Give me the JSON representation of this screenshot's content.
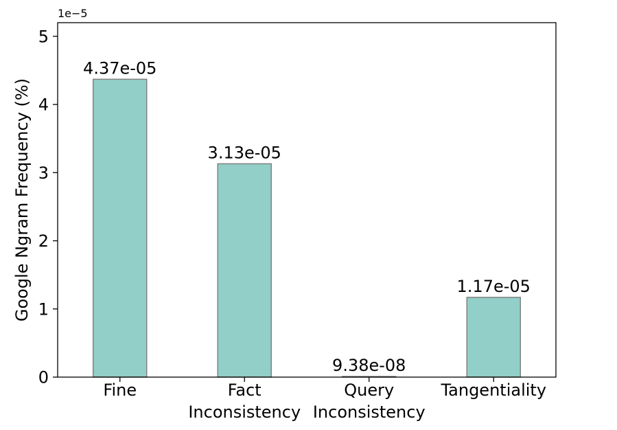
{
  "chart_data": {
    "type": "bar",
    "title": "",
    "xlabel": "",
    "ylabel": "Google Ngram Frequency (%)",
    "y_offset_label": "1e−5",
    "y_scale_exponent": -5,
    "categories": [
      [
        "Fine"
      ],
      [
        "Fact",
        "Inconsistency"
      ],
      [
        "Query",
        "Inconsistency"
      ],
      [
        "Tangentiality"
      ]
    ],
    "values": [
      4.37e-05,
      3.13e-05,
      9.38e-08,
      1.17e-05
    ],
    "data_labels": [
      "4.37e-05",
      "3.13e-05",
      "9.38e-08",
      "1.17e-05"
    ],
    "ylim": [
      0,
      5.2e-05
    ],
    "yticks": [
      0,
      1e-05,
      2e-05,
      3e-05,
      4e-05,
      5e-05
    ],
    "ytick_labels": [
      "0",
      "1",
      "2",
      "3",
      "4",
      "5"
    ],
    "grid": false,
    "colors": {
      "bar_fill": "#92cfc8",
      "bar_edge": "#808080",
      "axis": "#000000"
    }
  }
}
